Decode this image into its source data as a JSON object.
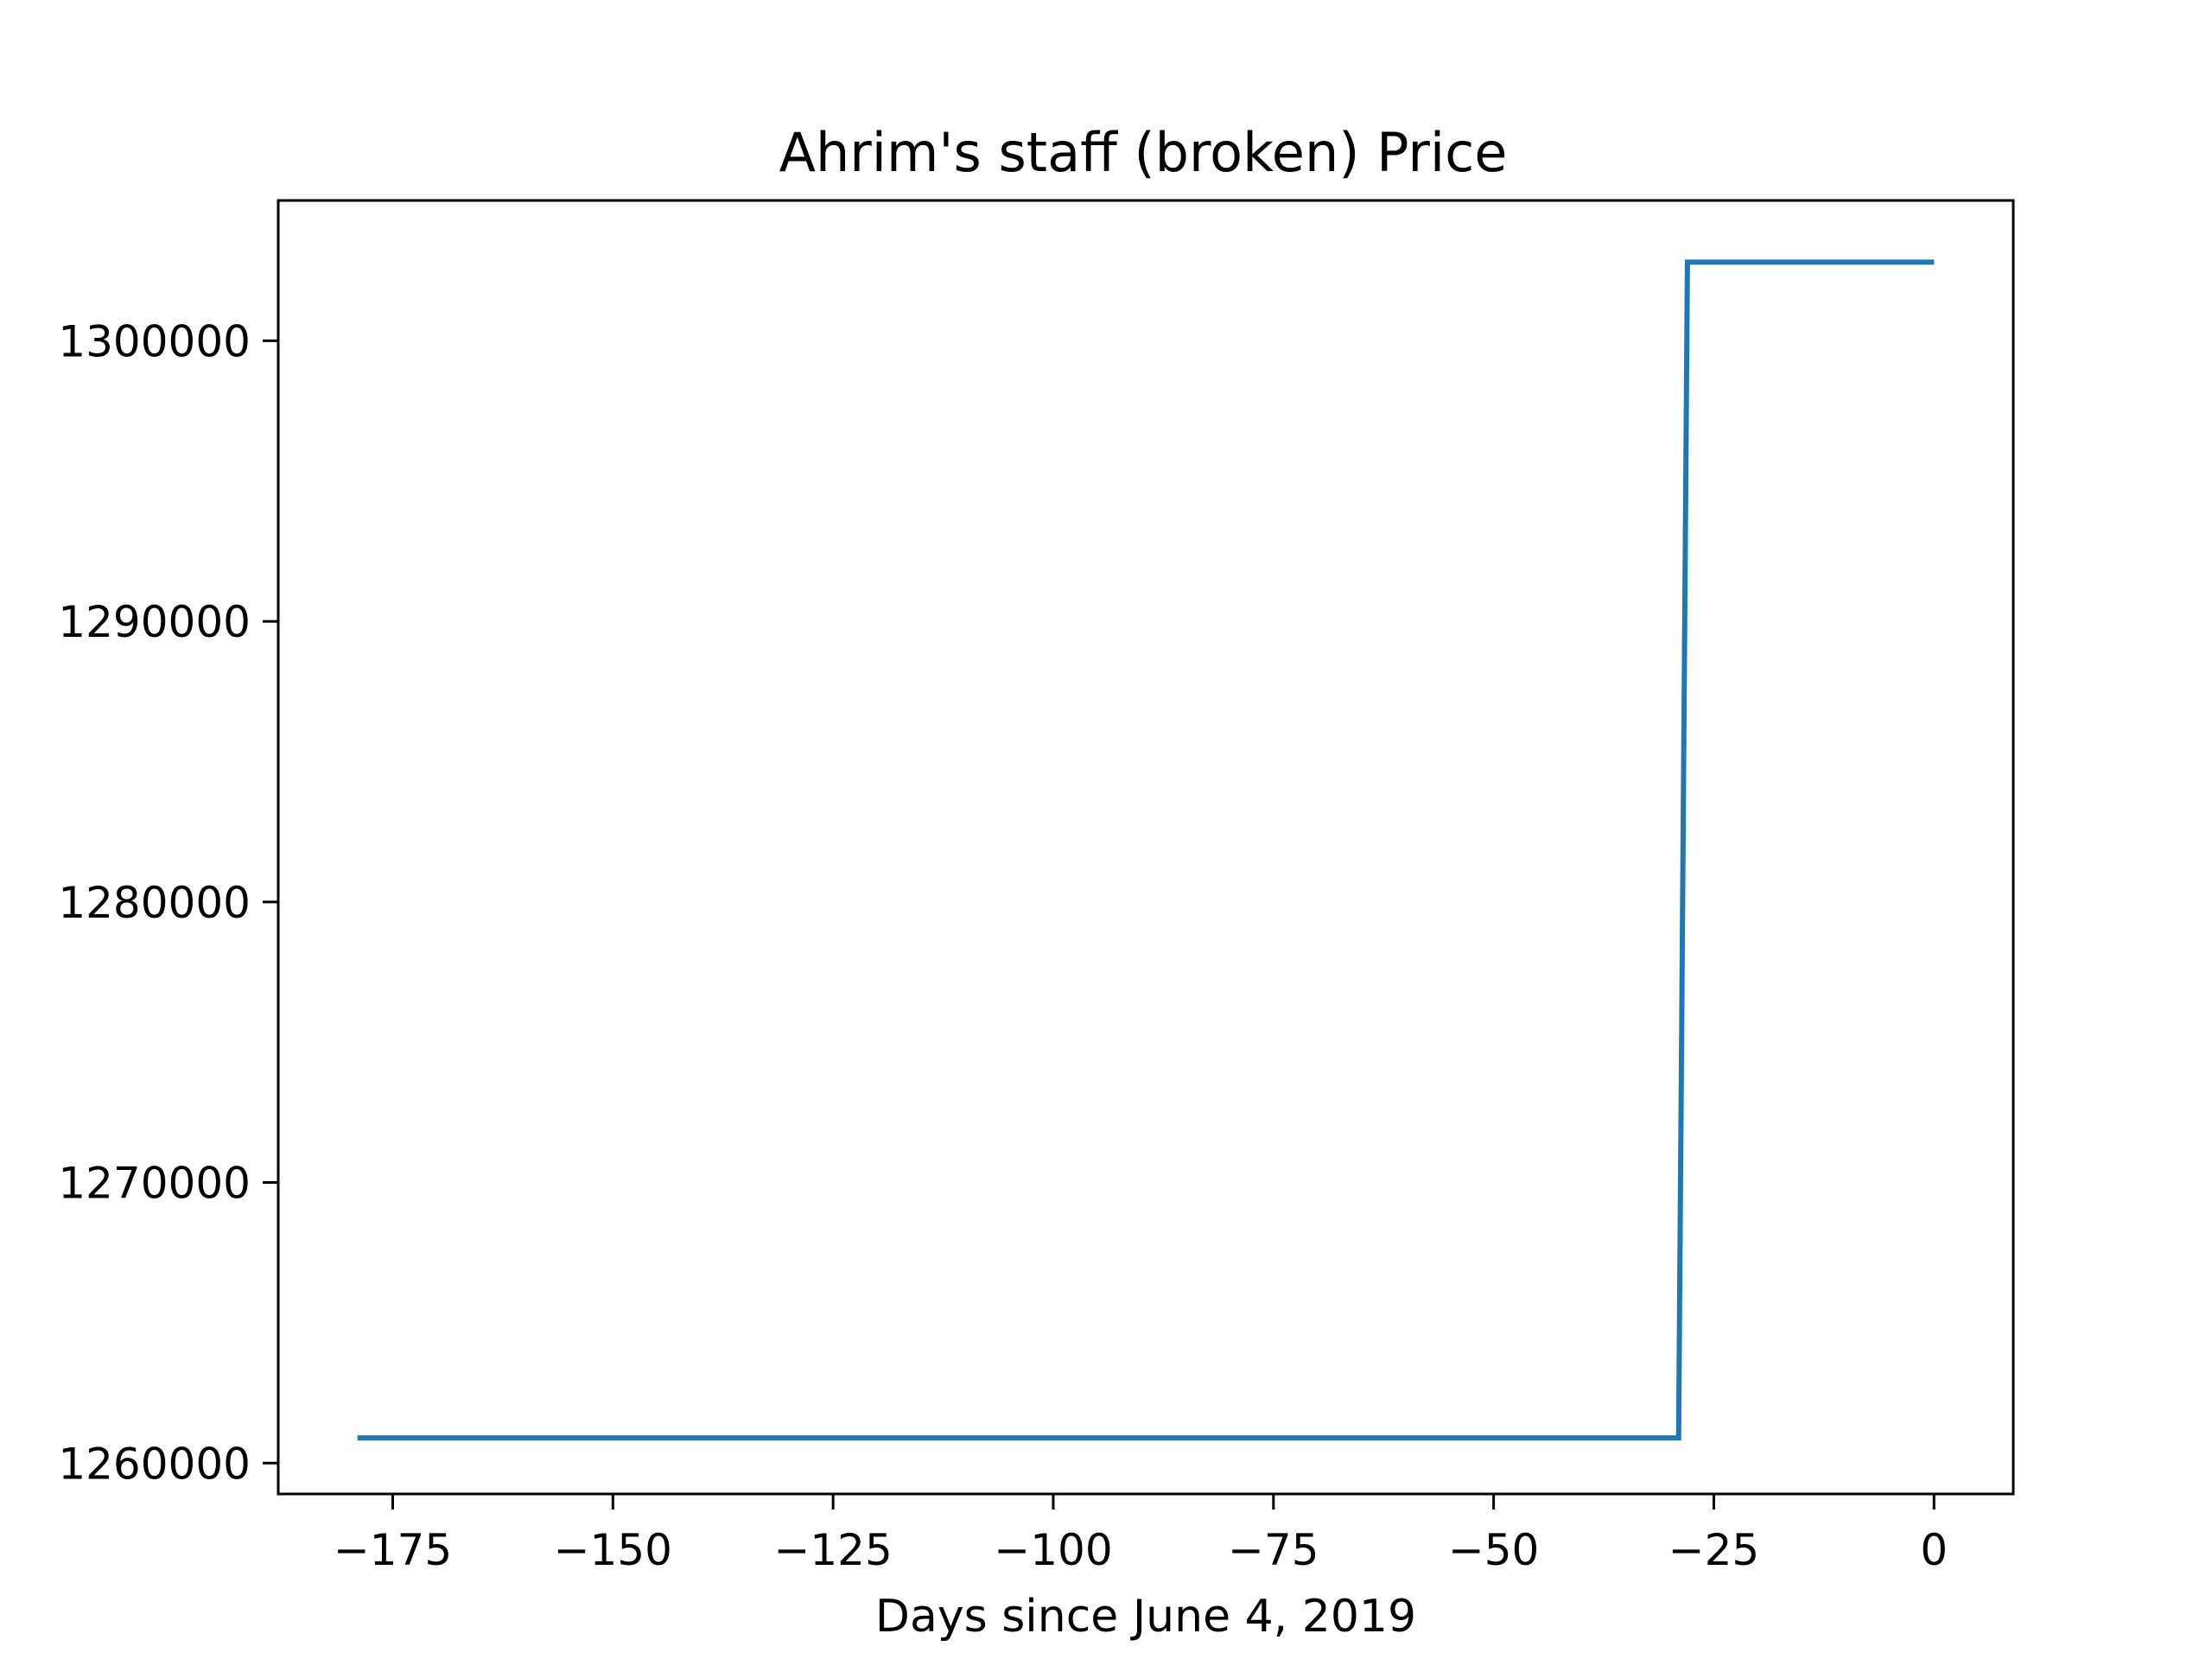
{
  "chart_data": {
    "type": "line",
    "title": "Ahrim's staff (broken) Price",
    "xlabel": "Days since June 4, 2019",
    "ylabel": "",
    "xlim": [
      -188,
      9
    ],
    "ylim": [
      1258900,
      1305000
    ],
    "xticks": [
      -175,
      -150,
      -125,
      -100,
      -75,
      -50,
      -25,
      0
    ],
    "xtick_labels": [
      "−175",
      "−150",
      "−125",
      "−100",
      "−75",
      "−50",
      "−25",
      "0"
    ],
    "yticks": [
      1260000,
      1270000,
      1280000,
      1290000,
      1300000
    ],
    "ytick_labels": [
      "1260000",
      "1270000",
      "1280000",
      "1290000",
      "1300000"
    ],
    "grid": false,
    "series": [
      {
        "color": "#1f77b4",
        "x": [
          -179,
          -29,
          -28,
          0
        ],
        "y": [
          1260900,
          1260900,
          1302800,
          1302800
        ]
      }
    ]
  }
}
